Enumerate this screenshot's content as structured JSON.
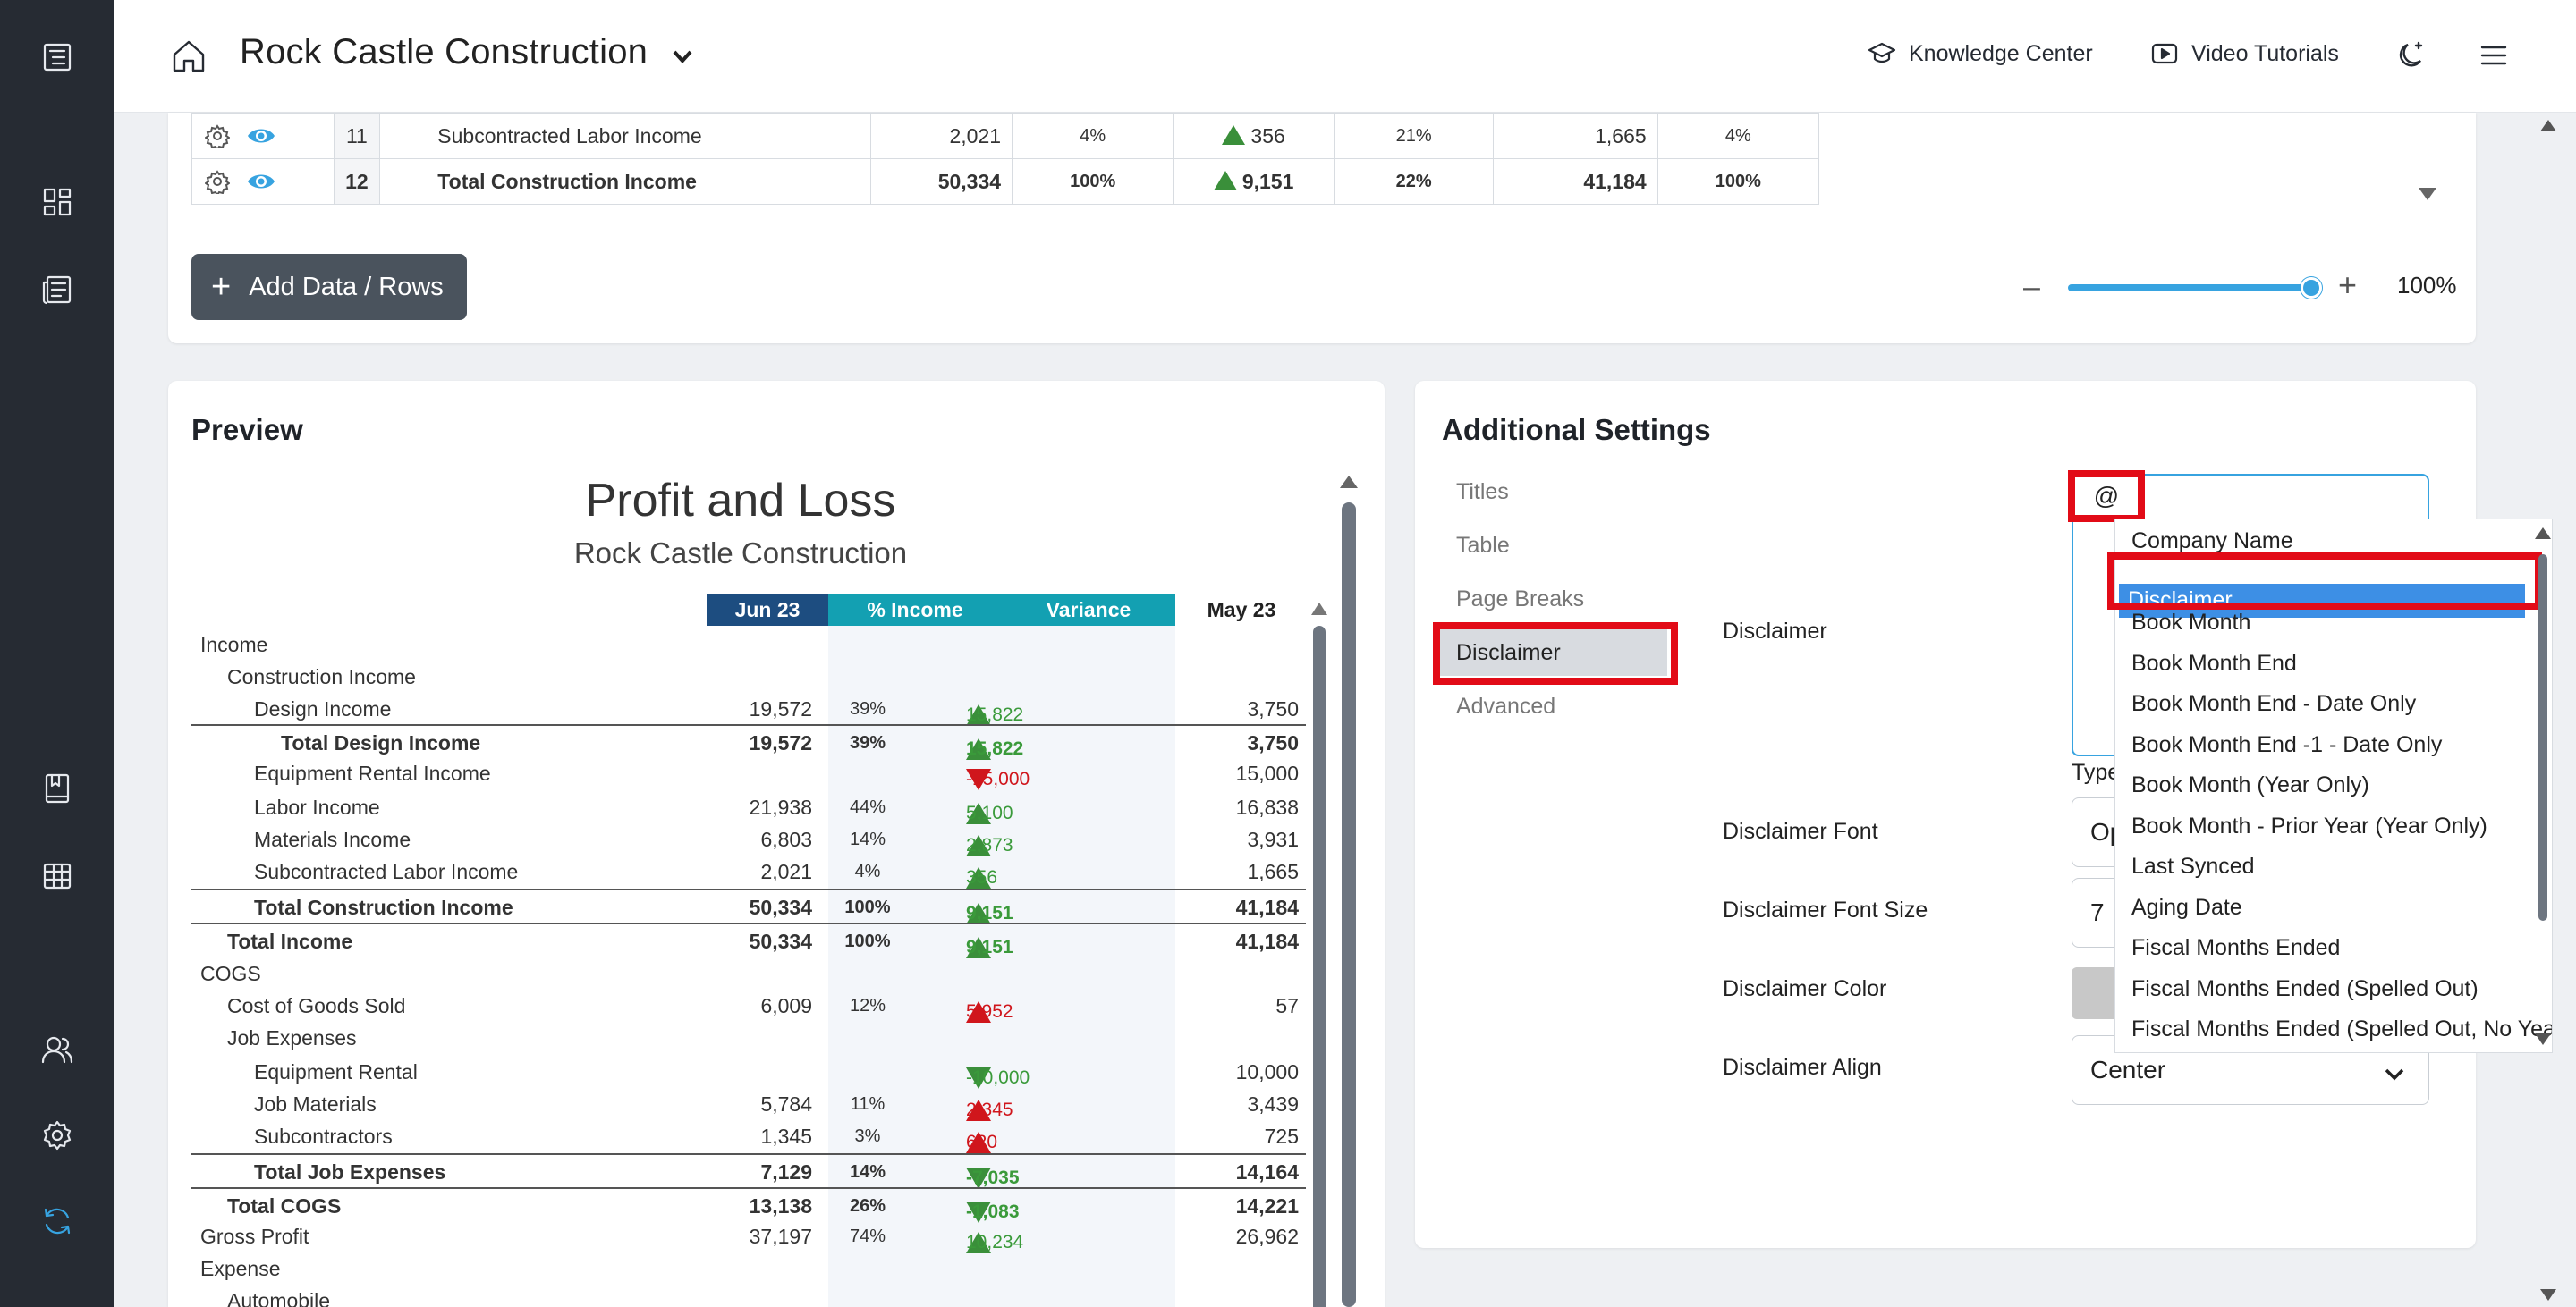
{
  "header": {
    "company": "Rock Castle Construction",
    "links": [
      "Knowledge Center",
      "Video Tutorials"
    ]
  },
  "rows_table": [
    {
      "num": "11",
      "label": "Subcontracted Labor Income",
      "value": "2,021",
      "pct": "4%",
      "variance": "356",
      "var_pct": "21%",
      "prior": "1,665",
      "prior_pct": "4%",
      "total": false
    },
    {
      "num": "12",
      "label": "Total Construction Income",
      "value": "50,334",
      "pct": "100%",
      "variance": "9,151",
      "var_pct": "22%",
      "prior": "41,184",
      "prior_pct": "100%",
      "total": true
    }
  ],
  "add_rows_label": "Add Data / Rows",
  "zoom": {
    "minus": "–",
    "plus": "+",
    "value": "100%"
  },
  "preview": {
    "card_title": "Preview",
    "report_title": "Profit and Loss",
    "report_subtitle": "Rock Castle Construction",
    "columns": [
      "Jun 23",
      "% Income",
      "Variance",
      "May 23"
    ],
    "rows": [
      {
        "label": "Income",
        "indent": 0,
        "v1": "",
        "v2": "",
        "v3": "",
        "dir": "",
        "v4": "",
        "bold": false,
        "line": false
      },
      {
        "label": "Construction Income",
        "indent": 1,
        "v1": "",
        "v2": "",
        "v3": "",
        "dir": "",
        "v4": "",
        "bold": false,
        "line": false
      },
      {
        "label": "Design Income",
        "indent": 2,
        "v1": "19,572",
        "v2": "39%",
        "v3": "15,822",
        "dir": "up",
        "v4": "3,750",
        "bold": false,
        "line": false
      },
      {
        "label": "Total Design Income",
        "indent": 3,
        "v1": "19,572",
        "v2": "39%",
        "v3": "15,822",
        "dir": "up",
        "v4": "3,750",
        "bold": true,
        "line": true
      },
      {
        "label": "Equipment Rental Income",
        "indent": 2,
        "v1": "",
        "v2": "",
        "v3": "-15,000",
        "dir": "dnred",
        "v4": "15,000",
        "bold": false,
        "line": false
      },
      {
        "label": "Labor Income",
        "indent": 2,
        "v1": "21,938",
        "v2": "44%",
        "v3": "5,100",
        "dir": "up",
        "v4": "16,838",
        "bold": false,
        "line": false
      },
      {
        "label": "Materials Income",
        "indent": 2,
        "v1": "6,803",
        "v2": "14%",
        "v3": "2,873",
        "dir": "up",
        "v4": "3,931",
        "bold": false,
        "line": false
      },
      {
        "label": "Subcontracted Labor Income",
        "indent": 2,
        "v1": "2,021",
        "v2": "4%",
        "v3": "356",
        "dir": "up",
        "v4": "1,665",
        "bold": false,
        "line": false
      },
      {
        "label": "Total Construction Income",
        "indent": 2,
        "v1": "50,334",
        "v2": "100%",
        "v3": "9,151",
        "dir": "up",
        "v4": "41,184",
        "bold": true,
        "line": true
      },
      {
        "label": "Total Income",
        "indent": 1,
        "v1": "50,334",
        "v2": "100%",
        "v3": "9,151",
        "dir": "up",
        "v4": "41,184",
        "bold": true,
        "line": true
      },
      {
        "label": "COGS",
        "indent": 0,
        "v1": "",
        "v2": "",
        "v3": "",
        "dir": "",
        "v4": "",
        "bold": false,
        "line": false
      },
      {
        "label": "Cost of Goods Sold",
        "indent": 1,
        "v1": "6,009",
        "v2": "12%",
        "v3": "5,952",
        "dir": "upred",
        "v4": "57",
        "bold": false,
        "line": false
      },
      {
        "label": "Job Expenses",
        "indent": 1,
        "v1": "",
        "v2": "",
        "v3": "",
        "dir": "",
        "v4": "",
        "bold": false,
        "line": false
      },
      {
        "label": "Equipment Rental",
        "indent": 2,
        "v1": "",
        "v2": "",
        "v3": "-10,000",
        "dir": "dn",
        "v4": "10,000",
        "bold": false,
        "line": false
      },
      {
        "label": "Job Materials",
        "indent": 2,
        "v1": "5,784",
        "v2": "11%",
        "v3": "2,345",
        "dir": "upred",
        "v4": "3,439",
        "bold": false,
        "line": false
      },
      {
        "label": "Subcontractors",
        "indent": 2,
        "v1": "1,345",
        "v2": "3%",
        "v3": "620",
        "dir": "upred",
        "v4": "725",
        "bold": false,
        "line": false
      },
      {
        "label": "Total Job Expenses",
        "indent": 2,
        "v1": "7,129",
        "v2": "14%",
        "v3": "-7,035",
        "dir": "dn",
        "v4": "14,164",
        "bold": true,
        "line": true
      },
      {
        "label": "Total COGS",
        "indent": 1,
        "v1": "13,138",
        "v2": "26%",
        "v3": "-1,083",
        "dir": "dn",
        "v4": "14,221",
        "bold": true,
        "line": true
      },
      {
        "label": "Gross Profit",
        "indent": 0,
        "v1": "37,197",
        "v2": "74%",
        "v3": "10,234",
        "dir": "up",
        "v4": "26,962",
        "bold": false,
        "line": false
      },
      {
        "label": "Expense",
        "indent": 0,
        "v1": "",
        "v2": "",
        "v3": "",
        "dir": "",
        "v4": "",
        "bold": false,
        "line": false
      },
      {
        "label": "Automobile",
        "indent": 1,
        "v1": "",
        "v2": "",
        "v3": "",
        "dir": "",
        "v4": "",
        "bold": false,
        "line": false
      }
    ]
  },
  "settings": {
    "card_title": "Additional Settings",
    "nav": [
      "Titles",
      "Table",
      "Page Breaks",
      "Disclaimer",
      "Advanced"
    ],
    "active_nav": "Disclaimer",
    "fields": {
      "disclaimer_label": "Disclaimer",
      "disclaimer_value": "@",
      "type_label": "Type",
      "font_label": "Disclaimer Font",
      "font_value": "Op",
      "font_size_label": "Disclaimer Font Size",
      "font_size_value": "7",
      "color_label": "Disclaimer Color",
      "color_value": "#c8c8c8",
      "align_label": "Disclaimer Align",
      "align_value": "Center"
    },
    "dropdown": [
      "Company Name",
      "Disclaimer",
      "Book Month",
      "Book Month End",
      "Book Month End - Date Only",
      "Book Month End -1 - Date Only",
      "Book Month (Year Only)",
      "Book Month - Prior Year (Year Only)",
      "Last Synced",
      "Aging Date",
      "Fiscal Months Ended",
      "Fiscal Months Ended (Spelled Out)",
      "Fiscal Months Ended (Spelled Out, No Year)"
    ],
    "dropdown_selected": "Disclaimer"
  },
  "colors": {
    "sidebar": "#262b33",
    "accent": "#37a3e0",
    "header_jun": "#1d4d80",
    "header_teal": "#13a0b2",
    "highlight": "#e20b17",
    "positive": "#3a8f3a",
    "negative": "#d0161c"
  }
}
